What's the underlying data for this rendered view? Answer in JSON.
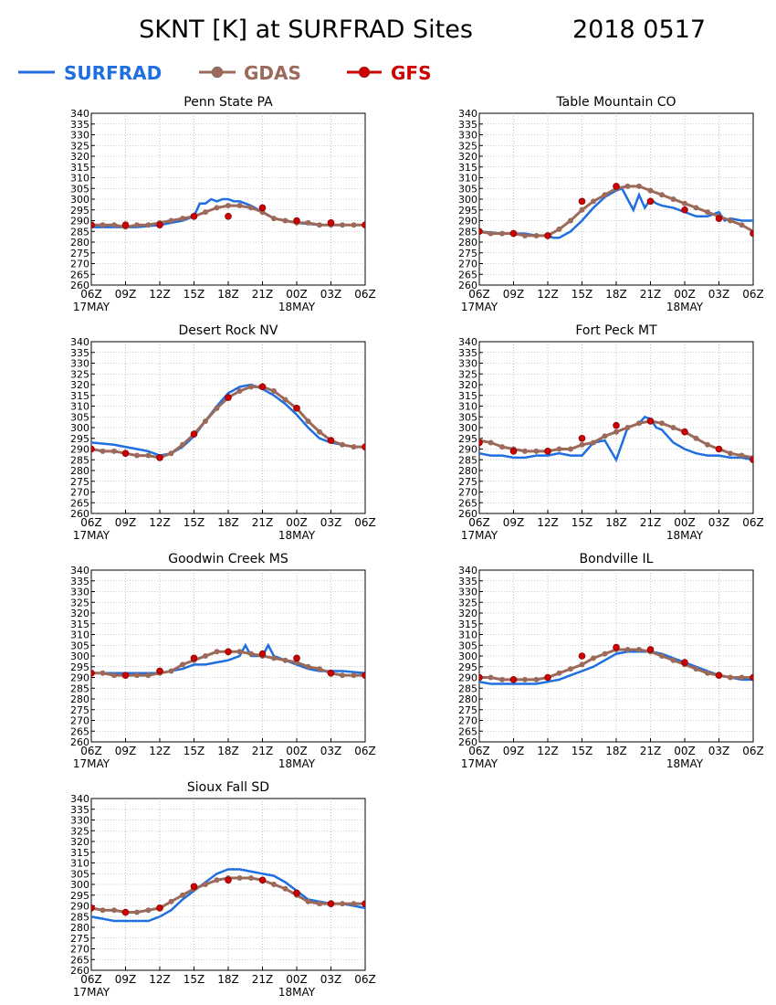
{
  "page": {
    "title": "SKNT [K] at SURFRAD Sites",
    "date_label": "2018 0517"
  },
  "legend": {
    "items": [
      {
        "label": "SURFRAD",
        "color": "#1f6fe0",
        "marker": false
      },
      {
        "label": "GDAS",
        "color": "#9b6a5a",
        "marker": true
      },
      {
        "label": "GFS",
        "color": "#cc0000",
        "marker": true
      }
    ]
  },
  "colors": {
    "surfrad": "#1f6fe0",
    "gdas": "#9b6a5a",
    "gfs": "#cc0000",
    "gfs_marker": "#cc0000"
  },
  "axes": {
    "y_ticks": [
      "260",
      "265",
      "270",
      "275",
      "280",
      "285",
      "290",
      "295",
      "300",
      "305",
      "310",
      "315",
      "320",
      "325",
      "330",
      "335",
      "340"
    ],
    "ylim": [
      260,
      340
    ],
    "x_ticks": [
      "06Z",
      "09Z",
      "12Z",
      "15Z",
      "18Z",
      "21Z",
      "00Z",
      "03Z",
      "06Z"
    ],
    "xlim": [
      0,
      24
    ],
    "date_labels": [
      {
        "label": "17MAY",
        "x": 0
      },
      {
        "label": "18MAY",
        "x": 18
      }
    ],
    "grid": true
  },
  "chart_data": [
    {
      "type": "line",
      "title": "Penn State PA",
      "series": [
        {
          "name": "SURFRAD",
          "x": [
            0,
            2,
            4,
            6,
            8,
            9,
            9.5,
            10,
            10.5,
            11,
            11.5,
            12,
            12.5,
            13,
            13.5,
            14,
            15,
            16,
            18,
            20,
            22,
            24
          ],
          "y": [
            287,
            287,
            287,
            288,
            290,
            292,
            298,
            298,
            300,
            299,
            300,
            300,
            299,
            299,
            298,
            297,
            294,
            291,
            289,
            288,
            288,
            288
          ]
        },
        {
          "name": "GDAS",
          "x": [
            0,
            1,
            2,
            3,
            4,
            5,
            6,
            7,
            8,
            9,
            10,
            11,
            12,
            13,
            14,
            15,
            16,
            17,
            18,
            19,
            20,
            21,
            22,
            23,
            24
          ],
          "y": [
            288,
            288,
            288,
            287,
            288,
            288,
            289,
            290,
            291,
            292,
            294,
            296,
            297,
            297,
            296,
            294,
            291,
            290,
            289,
            289,
            288,
            288,
            288,
            288,
            288
          ]
        },
        {
          "name": "GFS",
          "x": [
            0,
            3,
            6,
            9,
            12,
            15,
            18,
            21,
            24
          ],
          "y": [
            288,
            288,
            288,
            292,
            292,
            296,
            290,
            289,
            288
          ]
        }
      ]
    },
    {
      "type": "line",
      "title": "Table Mountain CO",
      "series": [
        {
          "name": "SURFRAD",
          "x": [
            0,
            2,
            4,
            5,
            6,
            6.5,
            7,
            8,
            9,
            10,
            11,
            12,
            12.5,
            13,
            13.5,
            14,
            14.5,
            15,
            15.5,
            16,
            17,
            18,
            19,
            20,
            21,
            21.5,
            22,
            23,
            24
          ],
          "y": [
            285,
            284,
            284,
            283,
            283,
            282,
            282,
            285,
            290,
            296,
            301,
            304,
            305,
            300,
            295,
            302,
            296,
            300,
            298,
            297,
            296,
            294,
            292,
            292,
            294,
            290,
            291,
            290,
            290
          ]
        },
        {
          "name": "GDAS",
          "x": [
            0,
            1,
            2,
            3,
            4,
            5,
            6,
            7,
            8,
            9,
            10,
            11,
            12,
            13,
            14,
            15,
            16,
            17,
            18,
            19,
            20,
            21,
            22,
            23,
            24
          ],
          "y": [
            285,
            284,
            284,
            284,
            283,
            283,
            283,
            286,
            290,
            295,
            299,
            302,
            305,
            306,
            306,
            304,
            302,
            300,
            298,
            296,
            294,
            292,
            290,
            288,
            285
          ]
        },
        {
          "name": "GFS",
          "x": [
            0,
            3,
            6,
            9,
            12,
            15,
            18,
            21,
            24
          ],
          "y": [
            285,
            284,
            283,
            299,
            306,
            299,
            295,
            291,
            284
          ]
        }
      ]
    },
    {
      "type": "line",
      "title": "Desert Rock NV",
      "series": [
        {
          "name": "SURFRAD",
          "x": [
            0,
            2,
            4,
            5,
            6,
            7,
            8,
            9,
            10,
            11,
            12,
            13,
            14,
            15,
            16,
            17,
            18,
            19,
            20,
            21,
            22,
            23,
            24
          ],
          "y": [
            293,
            292,
            290,
            289,
            287,
            288,
            291,
            296,
            303,
            310,
            316,
            319,
            320,
            318,
            315,
            311,
            306,
            300,
            295,
            293,
            292,
            291,
            291
          ]
        },
        {
          "name": "GDAS",
          "x": [
            0,
            1,
            2,
            3,
            4,
            5,
            6,
            7,
            8,
            9,
            10,
            11,
            12,
            13,
            14,
            15,
            16,
            17,
            18,
            19,
            20,
            21,
            22,
            23,
            24
          ],
          "y": [
            290,
            289,
            289,
            288,
            287,
            287,
            286,
            288,
            292,
            297,
            303,
            309,
            314,
            317,
            319,
            319,
            317,
            313,
            309,
            303,
            298,
            294,
            292,
            291,
            291
          ]
        },
        {
          "name": "GFS",
          "x": [
            0,
            3,
            6,
            9,
            12,
            15,
            18,
            21,
            24
          ],
          "y": [
            290,
            288,
            286,
            297,
            314,
            319,
            309,
            294,
            291
          ]
        }
      ]
    },
    {
      "type": "line",
      "title": "Fort Peck MT",
      "series": [
        {
          "name": "SURFRAD",
          "x": [
            0,
            1,
            2,
            3,
            4,
            5,
            6,
            7,
            8,
            9,
            10,
            11,
            12,
            13,
            14,
            14.5,
            15,
            15.5,
            16,
            17,
            18,
            19,
            20,
            21,
            22,
            23,
            24
          ],
          "y": [
            288,
            287,
            287,
            286,
            286,
            287,
            287,
            288,
            287,
            287,
            293,
            294,
            285,
            300,
            302,
            305,
            304,
            300,
            299,
            293,
            290,
            288,
            287,
            287,
            286,
            286,
            285
          ]
        },
        {
          "name": "GDAS",
          "x": [
            0,
            1,
            2,
            3,
            4,
            5,
            6,
            7,
            8,
            9,
            10,
            11,
            12,
            13,
            14,
            15,
            16,
            17,
            18,
            19,
            20,
            21,
            22,
            23,
            24
          ],
          "y": [
            294,
            293,
            291,
            290,
            289,
            289,
            289,
            290,
            290,
            292,
            293,
            296,
            298,
            300,
            302,
            303,
            302,
            300,
            298,
            295,
            292,
            290,
            288,
            287,
            286
          ]
        },
        {
          "name": "GFS",
          "x": [
            0,
            3,
            6,
            9,
            12,
            15,
            18,
            21,
            24
          ],
          "y": [
            293,
            289,
            289,
            295,
            301,
            303,
            298,
            290,
            285
          ]
        }
      ]
    },
    {
      "type": "line",
      "title": "Goodwin Creek MS",
      "series": [
        {
          "name": "SURFRAD",
          "x": [
            0,
            2,
            4,
            6,
            8,
            9,
            10,
            11,
            12,
            13,
            13.5,
            14,
            15,
            15.5,
            16,
            17,
            18,
            19,
            20,
            22,
            24
          ],
          "y": [
            292,
            292,
            292,
            292,
            294,
            296,
            296,
            297,
            298,
            300,
            305,
            300,
            300,
            305,
            300,
            298,
            296,
            294,
            293,
            293,
            292
          ]
        },
        {
          "name": "GDAS",
          "x": [
            0,
            1,
            2,
            3,
            4,
            5,
            6,
            7,
            8,
            9,
            10,
            11,
            12,
            13,
            14,
            15,
            16,
            17,
            18,
            19,
            20,
            21,
            22,
            23,
            24
          ],
          "y": [
            292,
            292,
            291,
            291,
            291,
            291,
            292,
            293,
            296,
            298,
            300,
            302,
            302,
            302,
            301,
            300,
            299,
            298,
            297,
            295,
            294,
            292,
            291,
            291,
            291
          ]
        },
        {
          "name": "GFS",
          "x": [
            0,
            3,
            6,
            9,
            12,
            15,
            18,
            21,
            24
          ],
          "y": [
            292,
            291,
            293,
            299,
            302,
            301,
            299,
            292,
            291
          ]
        }
      ]
    },
    {
      "type": "line",
      "title": "Bondville IL",
      "series": [
        {
          "name": "SURFRAD",
          "x": [
            0,
            1,
            2,
            3,
            4,
            5,
            6,
            7,
            8,
            9,
            10,
            11,
            12,
            13,
            14,
            15,
            16,
            17,
            18,
            19,
            20,
            21,
            22,
            23,
            24
          ],
          "y": [
            288,
            287,
            287,
            287,
            287,
            287,
            288,
            289,
            291,
            293,
            295,
            298,
            301,
            302,
            302,
            302,
            301,
            299,
            297,
            295,
            293,
            291,
            290,
            289,
            289
          ]
        },
        {
          "name": "GDAS",
          "x": [
            0,
            1,
            2,
            3,
            4,
            5,
            6,
            7,
            8,
            9,
            10,
            11,
            12,
            13,
            14,
            15,
            16,
            17,
            18,
            19,
            20,
            21,
            22,
            23,
            24
          ],
          "y": [
            290,
            290,
            289,
            289,
            289,
            289,
            290,
            292,
            294,
            296,
            299,
            301,
            303,
            303,
            303,
            302,
            300,
            298,
            296,
            294,
            292,
            291,
            290,
            290,
            290
          ]
        },
        {
          "name": "GFS",
          "x": [
            0,
            3,
            6,
            9,
            12,
            15,
            18,
            21,
            24
          ],
          "y": [
            290,
            289,
            290,
            300,
            304,
            303,
            297,
            291,
            290
          ]
        }
      ]
    },
    {
      "type": "line",
      "title": "Sioux Fall SD",
      "series": [
        {
          "name": "SURFRAD",
          "x": [
            0,
            1,
            2,
            3,
            4,
            5,
            6,
            7,
            8,
            9,
            10,
            11,
            12,
            13,
            14,
            15,
            16,
            17,
            18,
            19,
            20,
            21,
            22,
            23,
            24
          ],
          "y": [
            285,
            284,
            283,
            283,
            283,
            283,
            285,
            288,
            293,
            297,
            301,
            305,
            307,
            307,
            306,
            305,
            304,
            301,
            297,
            293,
            292,
            291,
            291,
            290,
            289
          ]
        },
        {
          "name": "GDAS",
          "x": [
            0,
            1,
            2,
            3,
            4,
            5,
            6,
            7,
            8,
            9,
            10,
            11,
            12,
            13,
            14,
            15,
            16,
            17,
            18,
            19,
            20,
            21,
            22,
            23,
            24
          ],
          "y": [
            289,
            288,
            288,
            287,
            287,
            288,
            289,
            292,
            295,
            298,
            300,
            302,
            303,
            303,
            303,
            302,
            300,
            298,
            295,
            292,
            291,
            291,
            291,
            291,
            291
          ]
        },
        {
          "name": "GFS",
          "x": [
            0,
            3,
            6,
            9,
            12,
            15,
            18,
            21,
            24
          ],
          "y": [
            289,
            287,
            289,
            299,
            302,
            302,
            296,
            291,
            291
          ]
        }
      ]
    }
  ]
}
